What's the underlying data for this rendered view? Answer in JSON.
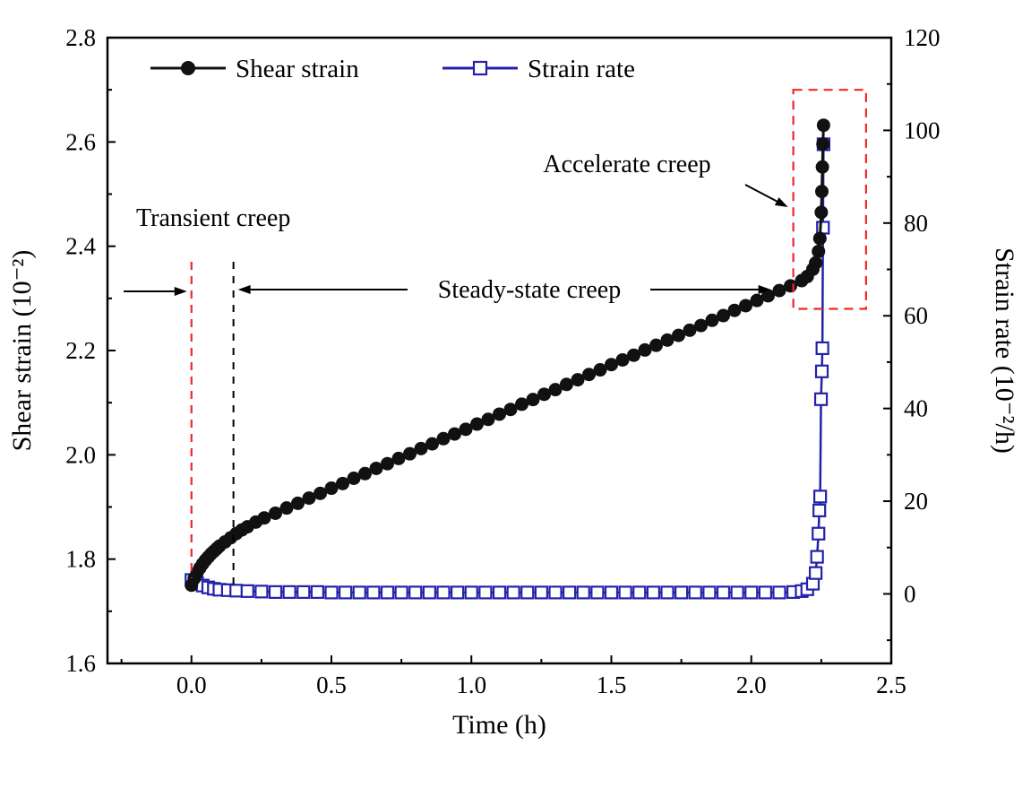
{
  "figure": {
    "background": "#ffffff"
  },
  "colors": {
    "shear_strain": "#111111",
    "strain_rate": "#2222aa",
    "annotation_red": "#f42525",
    "axis": "#000000"
  },
  "chart_data": {
    "type": "line",
    "title": "",
    "xlabel": "Time (h)",
    "ylabel_left": "Shear strain (10⁻²)",
    "ylabel_right": "Strain rate (10⁻²/h)",
    "xlim": [
      -0.3,
      2.5
    ],
    "xticks": [
      0.0,
      0.5,
      1.0,
      1.5,
      2.0,
      2.5
    ],
    "xtick_labels": [
      "0.0",
      "0.5",
      "1.0",
      "1.5",
      "2.0",
      "2.5"
    ],
    "ylim_left": [
      1.6,
      2.8
    ],
    "yticks_left": [
      1.6,
      1.8,
      2.0,
      2.2,
      2.4,
      2.6,
      2.8
    ],
    "ytick_labels_left": [
      "1.6",
      "1.8",
      "2.0",
      "2.2",
      "2.4",
      "2.6",
      "2.8"
    ],
    "ylim_right": [
      -15,
      120
    ],
    "yticks_right": [
      0,
      20,
      40,
      60,
      80,
      100,
      120
    ],
    "ytick_labels_right": [
      "0",
      "20",
      "40",
      "60",
      "80",
      "100",
      "120"
    ],
    "grid": false,
    "legend_position": "top-inside",
    "series": [
      {
        "name": "Shear strain",
        "axis": "left",
        "marker": "circle-filled",
        "color": "#111111",
        "x": [
          0.0,
          0.01,
          0.02,
          0.03,
          0.04,
          0.05,
          0.06,
          0.07,
          0.08,
          0.09,
          0.1,
          0.12,
          0.14,
          0.16,
          0.18,
          0.2,
          0.23,
          0.26,
          0.3,
          0.34,
          0.38,
          0.42,
          0.46,
          0.5,
          0.54,
          0.58,
          0.62,
          0.66,
          0.7,
          0.74,
          0.78,
          0.82,
          0.86,
          0.9,
          0.94,
          0.98,
          1.02,
          1.06,
          1.1,
          1.14,
          1.18,
          1.22,
          1.26,
          1.3,
          1.34,
          1.38,
          1.42,
          1.46,
          1.5,
          1.54,
          1.58,
          1.62,
          1.66,
          1.7,
          1.74,
          1.78,
          1.82,
          1.86,
          1.9,
          1.94,
          1.98,
          2.02,
          2.06,
          2.1,
          2.14,
          2.18,
          2.2,
          2.22,
          2.23,
          2.24,
          2.245,
          2.25,
          2.252,
          2.254,
          2.256,
          2.258
        ],
        "y": [
          1.75,
          1.763,
          1.774,
          1.783,
          1.791,
          1.798,
          1.804,
          1.81,
          1.815,
          1.82,
          1.825,
          1.833,
          1.841,
          1.849,
          1.856,
          1.862,
          1.871,
          1.879,
          1.888,
          1.898,
          1.907,
          1.917,
          1.926,
          1.936,
          1.945,
          1.955,
          1.964,
          1.974,
          1.983,
          1.993,
          2.002,
          2.012,
          2.021,
          2.031,
          2.04,
          2.049,
          2.059,
          2.068,
          2.078,
          2.087,
          2.097,
          2.106,
          2.116,
          2.125,
          2.135,
          2.144,
          2.154,
          2.163,
          2.173,
          2.182,
          2.191,
          2.201,
          2.21,
          2.22,
          2.229,
          2.239,
          2.248,
          2.258,
          2.267,
          2.277,
          2.286,
          2.296,
          2.305,
          2.315,
          2.324,
          2.334,
          2.342,
          2.356,
          2.368,
          2.39,
          2.415,
          2.465,
          2.505,
          2.552,
          2.596,
          2.632
        ]
      },
      {
        "name": "Strain rate",
        "axis": "right",
        "marker": "square-open",
        "color": "#2222aa",
        "x": [
          0.0,
          0.02,
          0.04,
          0.06,
          0.08,
          0.1,
          0.13,
          0.16,
          0.2,
          0.25,
          0.3,
          0.35,
          0.4,
          0.45,
          0.5,
          0.55,
          0.6,
          0.65,
          0.7,
          0.75,
          0.8,
          0.85,
          0.9,
          0.95,
          1.0,
          1.05,
          1.1,
          1.15,
          1.2,
          1.25,
          1.3,
          1.35,
          1.4,
          1.45,
          1.5,
          1.55,
          1.6,
          1.65,
          1.7,
          1.75,
          1.8,
          1.85,
          1.9,
          1.95,
          2.0,
          2.05,
          2.1,
          2.15,
          2.18,
          2.2,
          2.22,
          2.23,
          2.235,
          2.24,
          2.243,
          2.246,
          2.249,
          2.252,
          2.254,
          2.256,
          2.258
        ],
        "y": [
          3.0,
          2.3,
          1.8,
          1.4,
          1.1,
          0.9,
          0.8,
          0.7,
          0.6,
          0.5,
          0.4,
          0.4,
          0.4,
          0.4,
          0.3,
          0.3,
          0.3,
          0.3,
          0.3,
          0.3,
          0.3,
          0.3,
          0.3,
          0.3,
          0.3,
          0.3,
          0.3,
          0.3,
          0.3,
          0.3,
          0.3,
          0.3,
          0.3,
          0.3,
          0.3,
          0.3,
          0.3,
          0.3,
          0.3,
          0.3,
          0.3,
          0.3,
          0.3,
          0.3,
          0.3,
          0.3,
          0.3,
          0.4,
          0.6,
          1.0,
          2.2,
          4.5,
          8.0,
          13.0,
          18.0,
          21.0,
          42.0,
          48.0,
          53.0,
          79.0,
          97.0
        ]
      }
    ],
    "annotations": {
      "transient": {
        "label": "Transient creep",
        "t_start": 0.0,
        "t_end": 0.15
      },
      "steady": {
        "label": "Steady-state creep",
        "t_start": 0.15,
        "t_end": 2.07
      },
      "accelerate": {
        "label": "Accelerate creep",
        "box_t": [
          2.15,
          2.41
        ],
        "box_strain": [
          2.28,
          2.7
        ]
      }
    }
  }
}
